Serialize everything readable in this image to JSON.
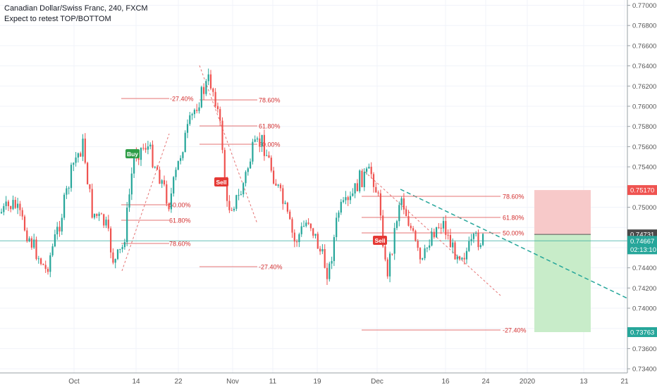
{
  "header": {
    "title": "Canadian Dollar/Swiss Franc, 240, FXCM",
    "subtitle": "Expect to retest TOP/BOTTOM"
  },
  "colors": {
    "up": "#26a69a",
    "down": "#ef5350",
    "grid": "#f0f3fa",
    "fib_line": "#e57373",
    "fib_text": "#d32f2f",
    "trendline": "#26a69a",
    "stop_zone": "#f7c9c9",
    "target_zone": "#c8ecc9",
    "current_price_line": "#26a69a",
    "axis_text": "#555555"
  },
  "chart_data": {
    "type": "candlestick",
    "symbol": "CADCHF",
    "timeframe": "240",
    "xlabel": "",
    "ylabel": "",
    "x_tick_labels": [
      "Oct",
      "14",
      "22",
      "Nov",
      "11",
      "19",
      "Dec",
      "16",
      "24",
      "2020",
      "13",
      "21"
    ],
    "y_tick_labels": [
      "0.77000",
      "0.76800",
      "0.76600",
      "0.76400",
      "0.76200",
      "0.76000",
      "0.75800",
      "0.75600",
      "0.75400",
      "0.75000",
      "0.74400",
      "0.74200",
      "0.74000",
      "0.73600",
      "0.73400"
    ],
    "ylim": [
      0.7332,
      0.7712
    ],
    "price_tags": [
      {
        "label": "0.75170",
        "value": 0.7517,
        "color": "#ef5350"
      },
      {
        "label": "0.74731",
        "value": 0.74731,
        "color": "#4a4a4a"
      },
      {
        "label": "0.74667",
        "value": 0.74667,
        "color": "#26a69a"
      },
      {
        "label": "02:13:10",
        "value": 0.74583,
        "color": "#26a69a"
      },
      {
        "label": "0.73763",
        "value": 0.73763,
        "color": "#26a69a"
      }
    ],
    "current_price": 0.74667,
    "signals": [
      {
        "label": "Buy",
        "type": "buy"
      },
      {
        "label": "Sell",
        "type": "sell"
      },
      {
        "label": "Sell",
        "type": "sell"
      }
    ],
    "fib_levels": [
      {
        "label": "-27.40%",
        "group": 1
      },
      {
        "label": "50.00%",
        "group": 1
      },
      {
        "label": "61.80%",
        "group": 1
      },
      {
        "label": "78.60%",
        "group": 1
      },
      {
        "label": "78.60%",
        "group": 2
      },
      {
        "label": "61.80%",
        "group": 2
      },
      {
        "label": "50.00%",
        "group": 2
      },
      {
        "label": "-27.40%",
        "group": 2
      },
      {
        "label": "78.60%",
        "group": 3
      },
      {
        "label": "61.80%",
        "group": 3
      },
      {
        "label": "50.00%",
        "group": 3
      },
      {
        "label": "-27.40%",
        "group": 3
      }
    ],
    "position": {
      "direction": "short",
      "entry": 0.74731,
      "stop": 0.7517,
      "target": 0.73763
    },
    "grid": true
  }
}
